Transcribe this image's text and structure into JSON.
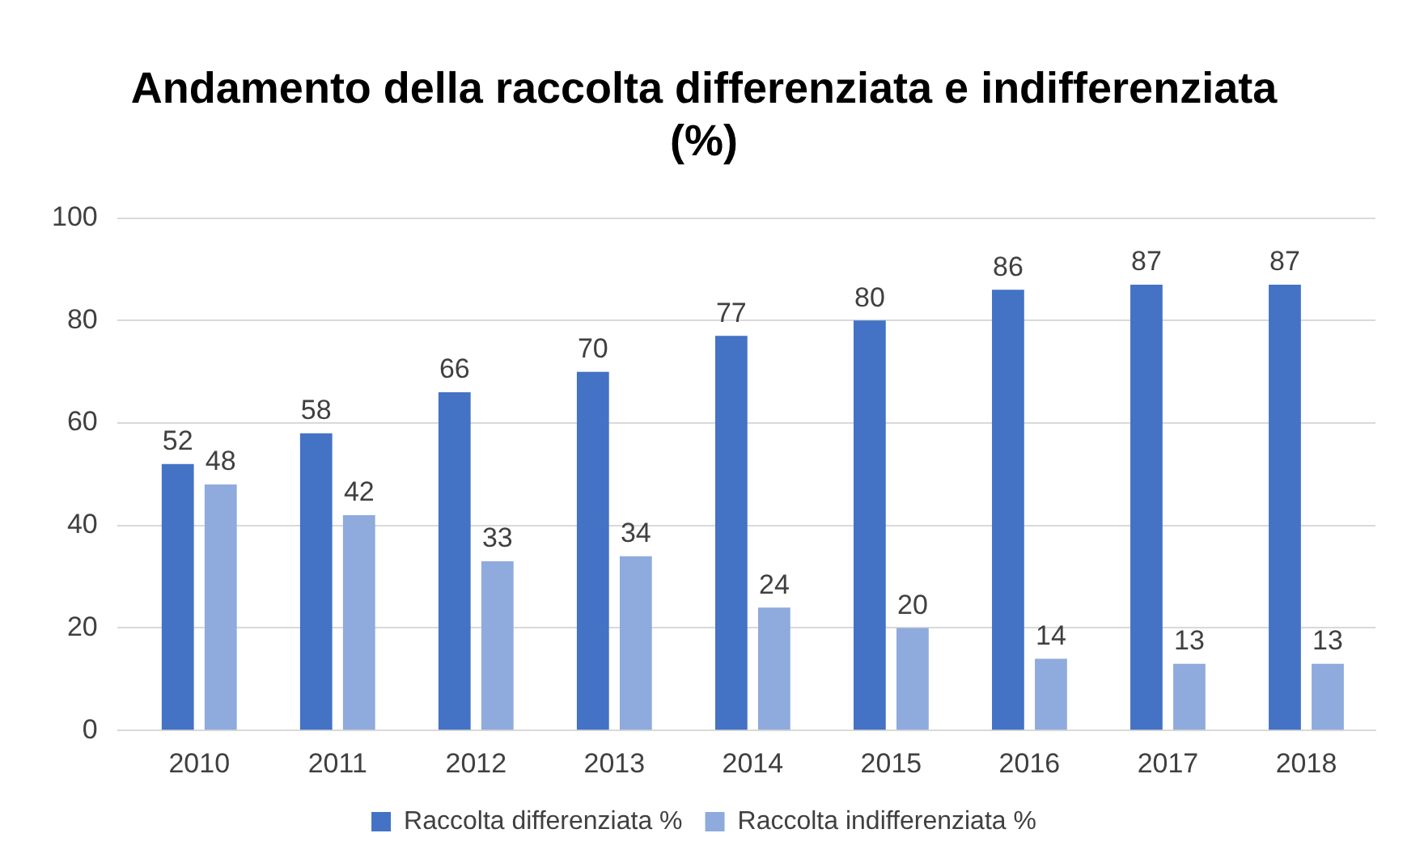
{
  "chart_data": {
    "type": "bar",
    "title": "Andamento della raccolta differenziata e indifferenziata (%)",
    "categories": [
      "2010",
      "2011",
      "2012",
      "2013",
      "2014",
      "2015",
      "2016",
      "2017",
      "2018"
    ],
    "series": [
      {
        "name": "Raccolta differenziata %",
        "color": "#4472c4",
        "values": [
          52,
          58,
          66,
          70,
          77,
          80,
          86,
          87,
          87
        ]
      },
      {
        "name": "Raccolta indifferenziata %",
        "color": "#8faadc",
        "values": [
          48,
          42,
          33,
          34,
          24,
          20,
          14,
          13,
          13
        ]
      }
    ],
    "ylim": [
      0,
      100
    ],
    "yticks": [
      0,
      20,
      40,
      60,
      80,
      100
    ],
    "grid": "y",
    "legend": "bottom",
    "data_labels": true
  }
}
